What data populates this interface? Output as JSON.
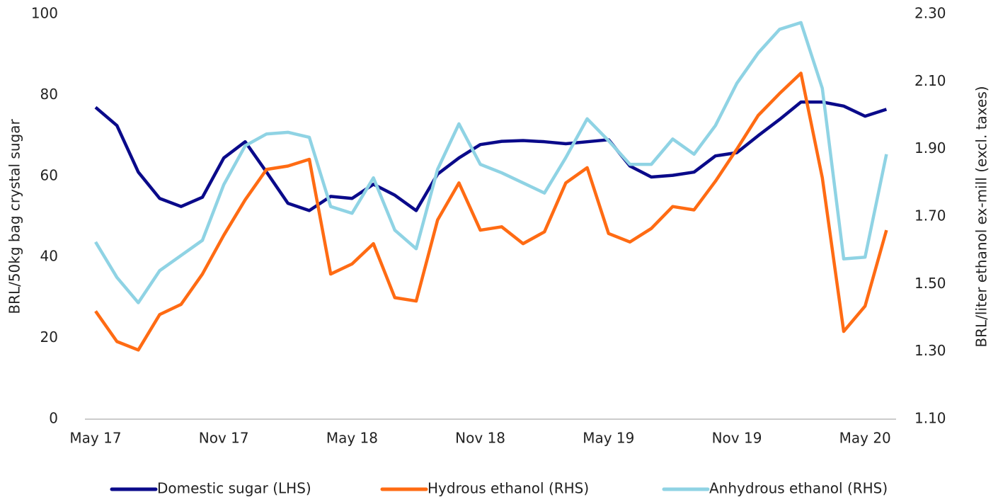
{
  "chart_data": {
    "type": "line",
    "y_label": "BRL/50kg bag crystal sugar",
    "y2_label": "BRL/liter ethanol ex-mill (excl. taxes)",
    "categories": [
      "May 17",
      null,
      null,
      null,
      null,
      null,
      "Nov 17",
      null,
      null,
      null,
      null,
      null,
      "May 18",
      null,
      null,
      null,
      null,
      null,
      "Nov 18",
      null,
      null,
      null,
      null,
      null,
      "May 19",
      null,
      null,
      null,
      null,
      null,
      "Nov 19",
      null,
      null,
      null,
      null,
      null,
      "May 20",
      null
    ],
    "ylim": [
      0,
      100
    ],
    "yticks": [
      0,
      20,
      40,
      60,
      80,
      100
    ],
    "y2lim": [
      1.1,
      2.3
    ],
    "y2ticks": [
      {
        "value": 1.1,
        "label": "1.10"
      },
      {
        "value": 1.3,
        "label": "1.30"
      },
      {
        "value": 1.5,
        "label": "1.50"
      },
      {
        "value": 1.7,
        "label": "1.70"
      },
      {
        "value": 1.9,
        "label": "1.90"
      },
      {
        "value": 2.1,
        "label": "2.10"
      },
      {
        "value": 2.3,
        "label": "2.30"
      }
    ],
    "grid": false,
    "legend": "bottom",
    "series": [
      {
        "name": "Domestic sugar (LHS)",
        "color": "#0a0a8a",
        "axis": "y",
        "values": [
          77,
          72.5,
          61,
          54.5,
          52.5,
          54.8,
          64.5,
          68.5,
          61,
          53.3,
          51.5,
          55,
          54.5,
          58,
          55.3,
          51.5,
          60.5,
          64.5,
          67.8,
          68.6,
          68.8,
          68.5,
          68,
          68.5,
          69,
          62.5,
          59.8,
          60.2,
          61,
          65,
          65.8,
          70,
          74,
          78.3,
          78.3,
          77.3,
          74.8,
          76.5
        ]
      },
      {
        "name": "Hydrous ethanol (RHS)",
        "color": "#ff6b13",
        "axis": "y2",
        "values": [
          1.42,
          1.33,
          1.305,
          1.41,
          1.44,
          1.53,
          1.645,
          1.75,
          1.84,
          1.85,
          1.87,
          1.53,
          1.56,
          1.62,
          1.46,
          1.45,
          1.69,
          1.8,
          1.66,
          1.67,
          1.62,
          1.655,
          1.8,
          1.845,
          1.65,
          1.625,
          1.665,
          1.73,
          1.72,
          1.805,
          1.9,
          2.0,
          2.065,
          2.125,
          1.815,
          1.36,
          1.435,
          1.66
        ]
      },
      {
        "name": "Anhydrous ethanol (RHS)",
        "color": "#8fd3e4",
        "axis": "y2",
        "values": [
          1.625,
          1.52,
          1.445,
          1.54,
          1.585,
          1.63,
          1.795,
          1.91,
          1.945,
          1.95,
          1.935,
          1.73,
          1.71,
          1.815,
          1.66,
          1.605,
          1.84,
          1.975,
          1.855,
          1.83,
          1.8,
          1.77,
          1.875,
          1.99,
          1.925,
          1.855,
          1.855,
          1.93,
          1.885,
          1.97,
          2.095,
          2.185,
          2.255,
          2.275,
          2.08,
          1.575,
          1.58,
          1.885
        ]
      }
    ]
  }
}
